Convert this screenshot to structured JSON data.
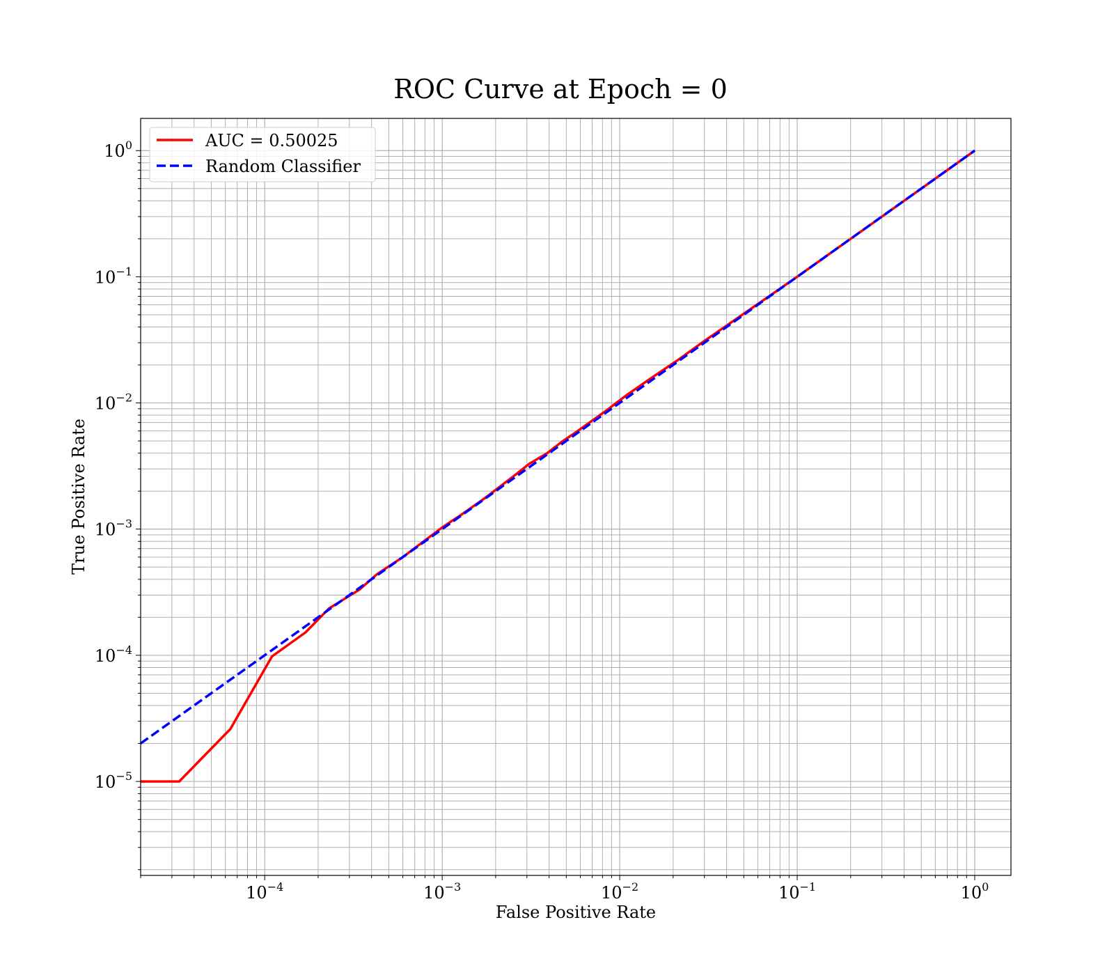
{
  "chart_data": {
    "type": "line",
    "title": "ROC Curve at Epoch = 0",
    "xlabel": "False Positive Rate",
    "ylabel": "True Positive Rate",
    "xscale": "log",
    "yscale": "log",
    "xlim": [
      2e-05,
      1.6
    ],
    "ylim": [
      1.8e-06,
      1.8
    ],
    "grid": true,
    "grid_which": "both",
    "legend_position": "upper-left",
    "x_ticks": [
      {
        "value": 0.0001,
        "base": "10",
        "exp": "−4"
      },
      {
        "value": 0.001,
        "base": "10",
        "exp": "−3"
      },
      {
        "value": 0.01,
        "base": "10",
        "exp": "−2"
      },
      {
        "value": 0.1,
        "base": "10",
        "exp": "−1"
      },
      {
        "value": 1,
        "base": "10",
        "exp": "0"
      }
    ],
    "y_ticks": [
      {
        "value": 1e-05,
        "base": "10",
        "exp": "−5"
      },
      {
        "value": 0.0001,
        "base": "10",
        "exp": "−4"
      },
      {
        "value": 0.001,
        "base": "10",
        "exp": "−3"
      },
      {
        "value": 0.01,
        "base": "10",
        "exp": "−2"
      },
      {
        "value": 0.1,
        "base": "10",
        "exp": "−1"
      },
      {
        "value": 1,
        "base": "10",
        "exp": "0"
      }
    ],
    "series": [
      {
        "name": "AUC = 0.50025",
        "color": "#ff0000",
        "style": "solid",
        "points": [
          [
            2e-05,
            1e-05
          ],
          [
            3.3e-05,
            1e-05
          ],
          [
            6.4e-05,
            2.6e-05
          ],
          [
            0.00011,
            9.8e-05
          ],
          [
            0.00017,
            0.000152
          ],
          [
            0.00023,
            0.000235
          ],
          [
            0.00034,
            0.00033
          ],
          [
            0.00043,
            0.00044
          ],
          [
            0.0006,
            0.0006
          ],
          [
            0.001,
            0.00103
          ],
          [
            0.0013,
            0.00132
          ],
          [
            0.0017,
            0.00172
          ],
          [
            0.0025,
            0.0026
          ],
          [
            0.0031,
            0.0033
          ],
          [
            0.0039,
            0.004
          ],
          [
            0.0047,
            0.0049
          ],
          [
            0.0058,
            0.006
          ],
          [
            0.0084,
            0.0087
          ],
          [
            0.011,
            0.0116
          ],
          [
            0.015,
            0.0157
          ],
          [
            0.021,
            0.0216
          ],
          [
            0.03,
            0.031
          ],
          [
            0.05,
            0.051
          ],
          [
            0.1,
            0.1
          ],
          [
            0.3,
            0.3
          ],
          [
            1,
            1
          ]
        ]
      },
      {
        "name": "Random Classifier",
        "color": "#0000ff",
        "style": "dashed",
        "points": [
          [
            2e-05,
            2e-05
          ],
          [
            1,
            1
          ]
        ]
      }
    ]
  }
}
